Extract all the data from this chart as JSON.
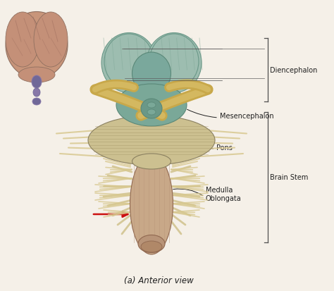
{
  "title": "(a) Anterior view",
  "background_color": "#f5f0e8",
  "labels": {
    "diencephalon": "Diencephalon",
    "mesencephalon": "Mesencephalon",
    "pons": "Pons",
    "brain_stem": "Brain Stem",
    "medulla_oblongata": "Medulla\nOblongata"
  },
  "colors": {
    "dienceph_green": "#9dbdb0",
    "dienceph_green2": "#7aa89c",
    "mesen_green": "#7aa898",
    "mesen_green2": "#6a9888",
    "tan_yellow": "#c8a84a",
    "tan_yellow2": "#d4b860",
    "pons_tan": "#b8aa78",
    "pons_tan2": "#ccc090",
    "medulla_brown": "#b89478",
    "medulla_brown2": "#c8a888",
    "nerve_tan": "#c8b878",
    "nerve_tan2": "#d8c890",
    "dark_line": "#404040",
    "red_arrow": "#cc1010",
    "brain_pink": "#c8957a",
    "brain_pink2": "#d4a888",
    "brain_outline": "#a07060",
    "purple": "#706898",
    "purple2": "#8878a8",
    "bracket_color": "#505050",
    "label_color": "#202020",
    "bg": "#f0ebe0"
  },
  "figsize": [
    4.74,
    4.14
  ],
  "dpi": 100
}
